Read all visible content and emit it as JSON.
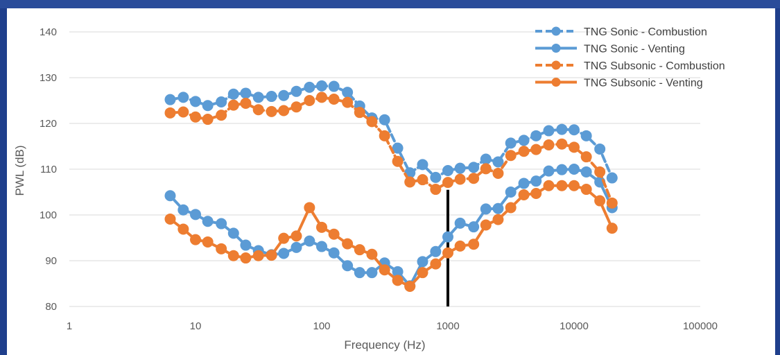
{
  "chart_data": {
    "type": "line",
    "xlabel": "Frequency (Hz)",
    "ylabel": "PWL (dB)",
    "x_scale": "log",
    "xlim": [
      1,
      100000
    ],
    "ylim": [
      80,
      140
    ],
    "x_ticks": [
      1,
      10,
      100,
      1000,
      10000,
      100000
    ],
    "x_tick_labels": [
      "1",
      "10",
      "100",
      "1000",
      "10000",
      "100000"
    ],
    "y_ticks": [
      80,
      90,
      100,
      110,
      120,
      130,
      140
    ],
    "y_tick_labels": [
      "80",
      "90",
      "100",
      "110",
      "120",
      "130",
      "140"
    ],
    "grid": "horizontal",
    "legend_position": "top-right",
    "x": [
      6.3,
      8,
      10,
      12.5,
      16,
      20,
      25,
      31.5,
      40,
      50,
      63,
      80,
      100,
      125,
      160,
      200,
      250,
      315,
      400,
      500,
      630,
      800,
      1000,
      1250,
      1600,
      2000,
      2500,
      3150,
      4000,
      5000,
      6300,
      8000,
      10000,
      12500,
      16000,
      20000
    ],
    "series": [
      {
        "name": "TNG Sonic - Combustion",
        "color": "#5b9bd5",
        "line_style": "dashed",
        "values": [
          125.2,
          125.7,
          124.8,
          123.9,
          124.7,
          126.4,
          126.6,
          125.7,
          125.9,
          126.1,
          127.0,
          127.9,
          128.2,
          128.1,
          126.8,
          123.8,
          121.2,
          120.8,
          114.6,
          109.2,
          111.0,
          108.2,
          109.7,
          110.2,
          110.4,
          112.2,
          111.6,
          115.7,
          116.3,
          117.3,
          118.4,
          118.7,
          118.6,
          117.3,
          114.4,
          108.1
        ]
      },
      {
        "name": "TNG Sonic - Venting",
        "color": "#5b9bd5",
        "line_style": "solid",
        "values": [
          104.2,
          101.1,
          100.1,
          98.6,
          98.1,
          96.0,
          93.4,
          92.2,
          91.3,
          91.6,
          92.9,
          94.3,
          93.1,
          91.7,
          88.9,
          87.4,
          87.4,
          89.5,
          87.6,
          84.5,
          89.8,
          92.0,
          95.2,
          98.2,
          97.4,
          101.3,
          101.4,
          105.0,
          106.9,
          107.4,
          109.6,
          109.9,
          110.0,
          109.4,
          107.2,
          101.6
        ]
      },
      {
        "name": "TNG Subsonic - Combustion",
        "color": "#ed7d31",
        "line_style": "dashed",
        "values": [
          122.3,
          122.5,
          121.4,
          120.9,
          121.8,
          124.0,
          124.4,
          123.0,
          122.6,
          122.8,
          123.6,
          125.0,
          125.7,
          125.3,
          124.6,
          122.4,
          120.4,
          117.3,
          111.7,
          107.2,
          107.7,
          105.6,
          107.1,
          107.8,
          108.0,
          110.1,
          109.1,
          113.0,
          113.9,
          114.3,
          115.3,
          115.5,
          114.8,
          112.7,
          109.4,
          102.6
        ]
      },
      {
        "name": "TNG Subsonic - Venting",
        "color": "#ed7d31",
        "line_style": "solid",
        "values": [
          99.1,
          96.9,
          94.6,
          94.1,
          92.6,
          91.1,
          90.6,
          91.1,
          91.2,
          94.9,
          95.4,
          101.6,
          97.3,
          95.8,
          93.7,
          92.4,
          91.4,
          88.0,
          85.7,
          84.4,
          87.4,
          89.3,
          91.7,
          93.2,
          93.6,
          97.8,
          99.0,
          101.6,
          104.4,
          104.7,
          106.4,
          106.4,
          106.4,
          105.6,
          103.1,
          97.1
        ]
      }
    ],
    "annotations": [
      {
        "type": "vertical-line",
        "x": 1000,
        "y_from": 80,
        "y_to": 105.5,
        "color": "#000000"
      }
    ]
  }
}
